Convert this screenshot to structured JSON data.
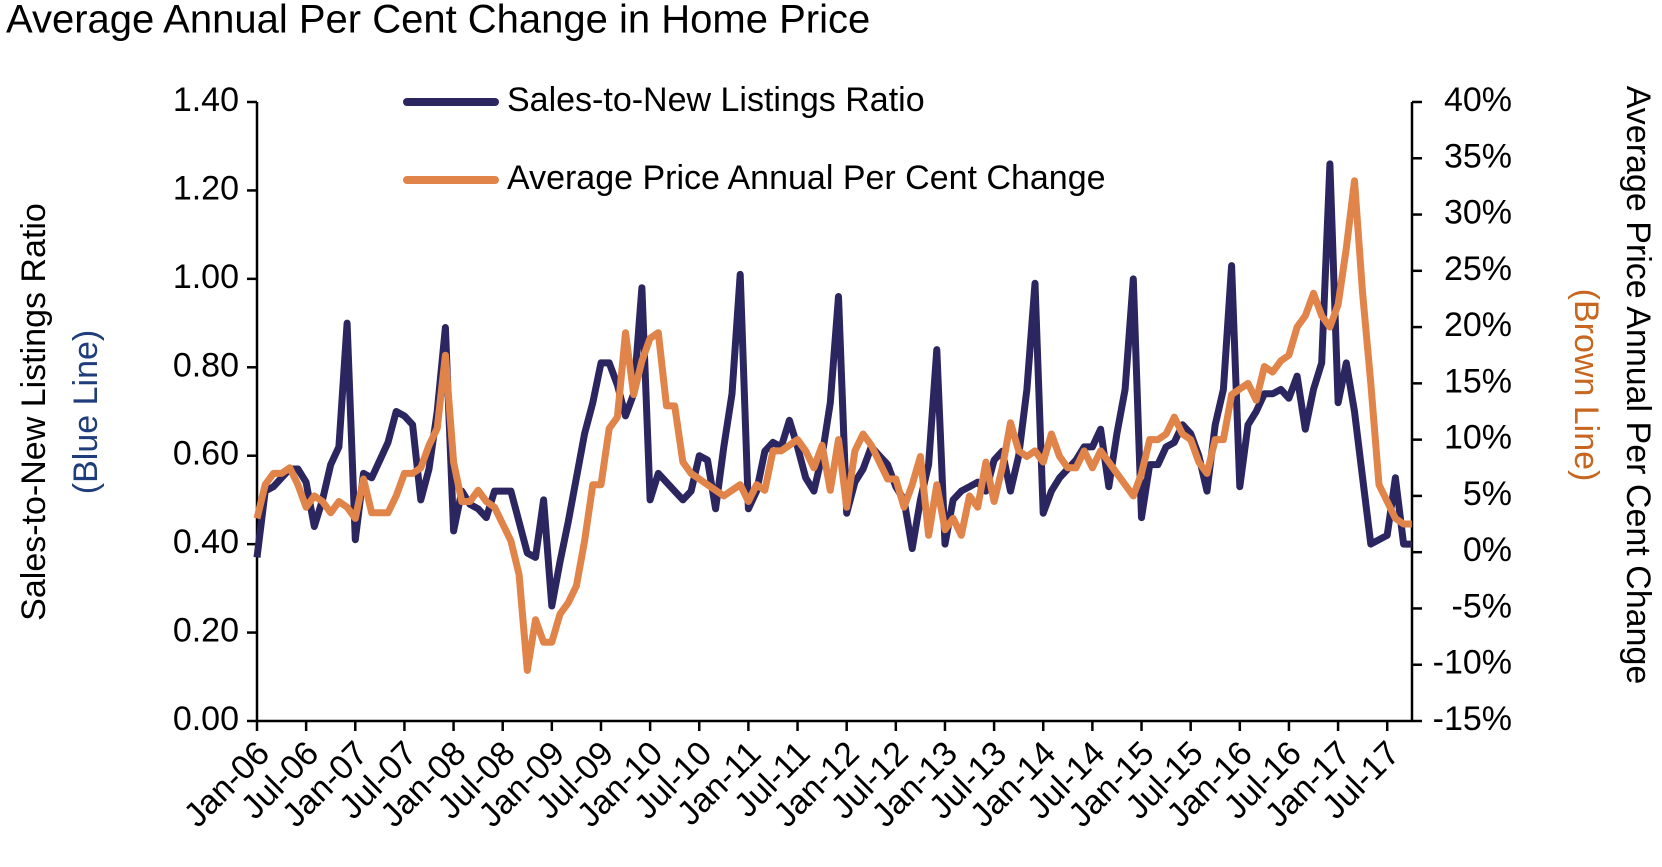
{
  "chart_data": {
    "type": "line",
    "title": "Average Annual Per Cent Change in Home Price",
    "y_label": "Sales-to-New Listings Ratio",
    "y_label_note": "(Blue Line)",
    "y2_label": "Average Price Annual Per Cent Change",
    "y2_label_note": "(Brown Line)",
    "grid": false,
    "legend": "top",
    "categories": [
      "Jan-06",
      null,
      null,
      null,
      null,
      null,
      "Jul-06",
      null,
      null,
      null,
      null,
      null,
      "Jan-07",
      null,
      null,
      null,
      null,
      null,
      "Jul-07",
      null,
      null,
      null,
      null,
      null,
      "Jan-08",
      null,
      null,
      null,
      null,
      null,
      "Jul-08",
      null,
      null,
      null,
      null,
      null,
      "Jan-09",
      null,
      null,
      null,
      null,
      null,
      "Jul-09",
      null,
      null,
      null,
      null,
      null,
      "Jan-10",
      null,
      null,
      null,
      null,
      null,
      "Jul-10",
      null,
      null,
      null,
      null,
      null,
      "Jan-11",
      null,
      null,
      null,
      null,
      null,
      "Jul-11",
      null,
      null,
      null,
      null,
      null,
      "Jan-12",
      null,
      null,
      null,
      null,
      null,
      "Jul-12",
      null,
      null,
      null,
      null,
      null,
      "Jan-13",
      null,
      null,
      null,
      null,
      null,
      "Jul-13",
      null,
      null,
      null,
      null,
      null,
      "Jan-14",
      null,
      null,
      null,
      null,
      null,
      "Jul-14",
      null,
      null,
      null,
      null,
      null,
      "Jan-15",
      null,
      null,
      null,
      null,
      null,
      "Jul-15",
      null,
      null,
      null,
      null,
      null,
      "Jan-16",
      null,
      null,
      null,
      null,
      null,
      "Jul-16",
      null,
      null,
      null,
      null,
      null,
      "Jan-17",
      null,
      null,
      null,
      null,
      null,
      "Jul-17",
      null,
      null,
      null
    ],
    "series": [
      {
        "name": "Sales-to-New Listings Ratio",
        "color": "#2b2560",
        "axis": "y",
        "values": [
          0.37,
          0.52,
          0.53,
          0.55,
          0.57,
          0.57,
          0.54,
          0.44,
          0.5,
          0.58,
          0.62,
          0.9,
          0.41,
          0.56,
          0.55,
          0.59,
          0.63,
          0.7,
          0.69,
          0.67,
          0.5,
          0.57,
          0.7,
          0.89,
          0.43,
          0.52,
          0.49,
          0.48,
          0.46,
          0.52,
          0.52,
          0.52,
          0.45,
          0.38,
          0.37,
          0.5,
          0.26,
          0.36,
          0.45,
          0.55,
          0.65,
          0.72,
          0.81,
          0.81,
          0.76,
          0.69,
          0.74,
          0.98,
          0.5,
          0.56,
          0.54,
          0.52,
          0.5,
          0.52,
          0.6,
          0.59,
          0.48,
          0.62,
          0.74,
          1.01,
          0.48,
          0.52,
          0.61,
          0.63,
          0.62,
          0.68,
          0.62,
          0.55,
          0.52,
          0.6,
          0.72,
          0.96,
          0.47,
          0.54,
          0.57,
          0.62,
          0.6,
          0.58,
          0.53,
          0.5,
          0.39,
          0.5,
          0.58,
          0.84,
          0.4,
          0.5,
          0.52,
          0.53,
          0.54,
          0.52,
          0.59,
          0.61,
          0.52,
          0.6,
          0.75,
          0.99,
          0.47,
          0.52,
          0.55,
          0.57,
          0.59,
          0.62,
          0.62,
          0.66,
          0.53,
          0.65,
          0.75,
          1.0,
          0.46,
          0.58,
          0.58,
          0.62,
          0.63,
          0.67,
          0.65,
          0.6,
          0.52,
          0.67,
          0.75,
          1.03,
          0.53,
          0.67,
          0.7,
          0.74,
          0.74,
          0.75,
          0.73,
          0.78,
          0.66,
          0.75,
          0.81,
          1.26,
          0.72,
          0.81,
          0.7,
          0.55,
          0.4,
          0.41,
          0.42,
          0.55,
          0.4,
          0.4
        ]
      },
      {
        "name": "Average Price Annual Per Cent Change",
        "color": "#e0844a",
        "axis": "y2",
        "values": [
          3,
          6,
          7,
          7,
          7.5,
          6,
          4,
          5,
          4.5,
          3.5,
          4.5,
          4,
          3,
          6.5,
          3.5,
          3.5,
          3.5,
          5,
          7,
          7,
          7.5,
          9.5,
          11,
          17.5,
          8,
          4.5,
          4.5,
          5.5,
          4.5,
          4,
          2.5,
          1,
          -2,
          -10.5,
          -6,
          -8,
          -8,
          -5.5,
          -4.5,
          -3,
          1,
          6,
          6,
          11,
          12,
          19.5,
          14,
          17,
          19,
          19.5,
          13,
          13,
          8,
          7,
          6.5,
          6,
          5.5,
          5,
          5.5,
          6,
          4.5,
          6,
          5.5,
          9,
          9,
          9.5,
          10,
          9,
          7.5,
          9.5,
          5.5,
          10,
          4,
          9,
          10.5,
          9.5,
          8,
          6.5,
          6.5,
          4,
          6,
          8.5,
          1.5,
          6,
          2,
          3,
          1.5,
          5,
          4,
          8,
          4.5,
          7.5,
          11.5,
          9,
          8.5,
          9,
          8,
          10.5,
          8.5,
          7.5,
          7.5,
          9,
          7.5,
          9,
          8,
          7,
          6,
          5,
          7,
          10,
          10,
          10.5,
          12,
          10.5,
          10,
          8,
          7,
          10,
          10,
          14,
          14.5,
          15,
          13.5,
          16.5,
          16,
          17,
          17.5,
          20,
          21,
          23,
          21,
          20,
          22,
          27,
          33,
          23,
          15,
          6,
          4.5,
          3,
          2.5,
          2.5
        ]
      }
    ],
    "ylim": [
      0,
      1.4
    ],
    "yticks": [
      {
        "value": 0,
        "label": "0.00"
      },
      {
        "value": 0.2,
        "label": "0.20"
      },
      {
        "value": 0.4,
        "label": "0.40"
      },
      {
        "value": 0.6,
        "label": "0.60"
      },
      {
        "value": 0.8,
        "label": "0.80"
      },
      {
        "value": 1,
        "label": "1.00"
      },
      {
        "value": 1.2,
        "label": "1.20"
      },
      {
        "value": 1.4,
        "label": "1.40"
      }
    ],
    "y2lim": [
      -15,
      40
    ],
    "y2ticks": [
      {
        "value": -15,
        "label": "-15%"
      },
      {
        "value": -10,
        "label": "-10%"
      },
      {
        "value": -5,
        "label": "-5%"
      },
      {
        "value": 0,
        "label": "0%"
      },
      {
        "value": 5,
        "label": "5%"
      },
      {
        "value": 10,
        "label": "10%"
      },
      {
        "value": 15,
        "label": "15%"
      },
      {
        "value": 20,
        "label": "20%"
      },
      {
        "value": 25,
        "label": "25%"
      },
      {
        "value": 30,
        "label": "30%"
      },
      {
        "value": 35,
        "label": "35%"
      },
      {
        "value": 40,
        "label": "40%"
      }
    ]
  }
}
